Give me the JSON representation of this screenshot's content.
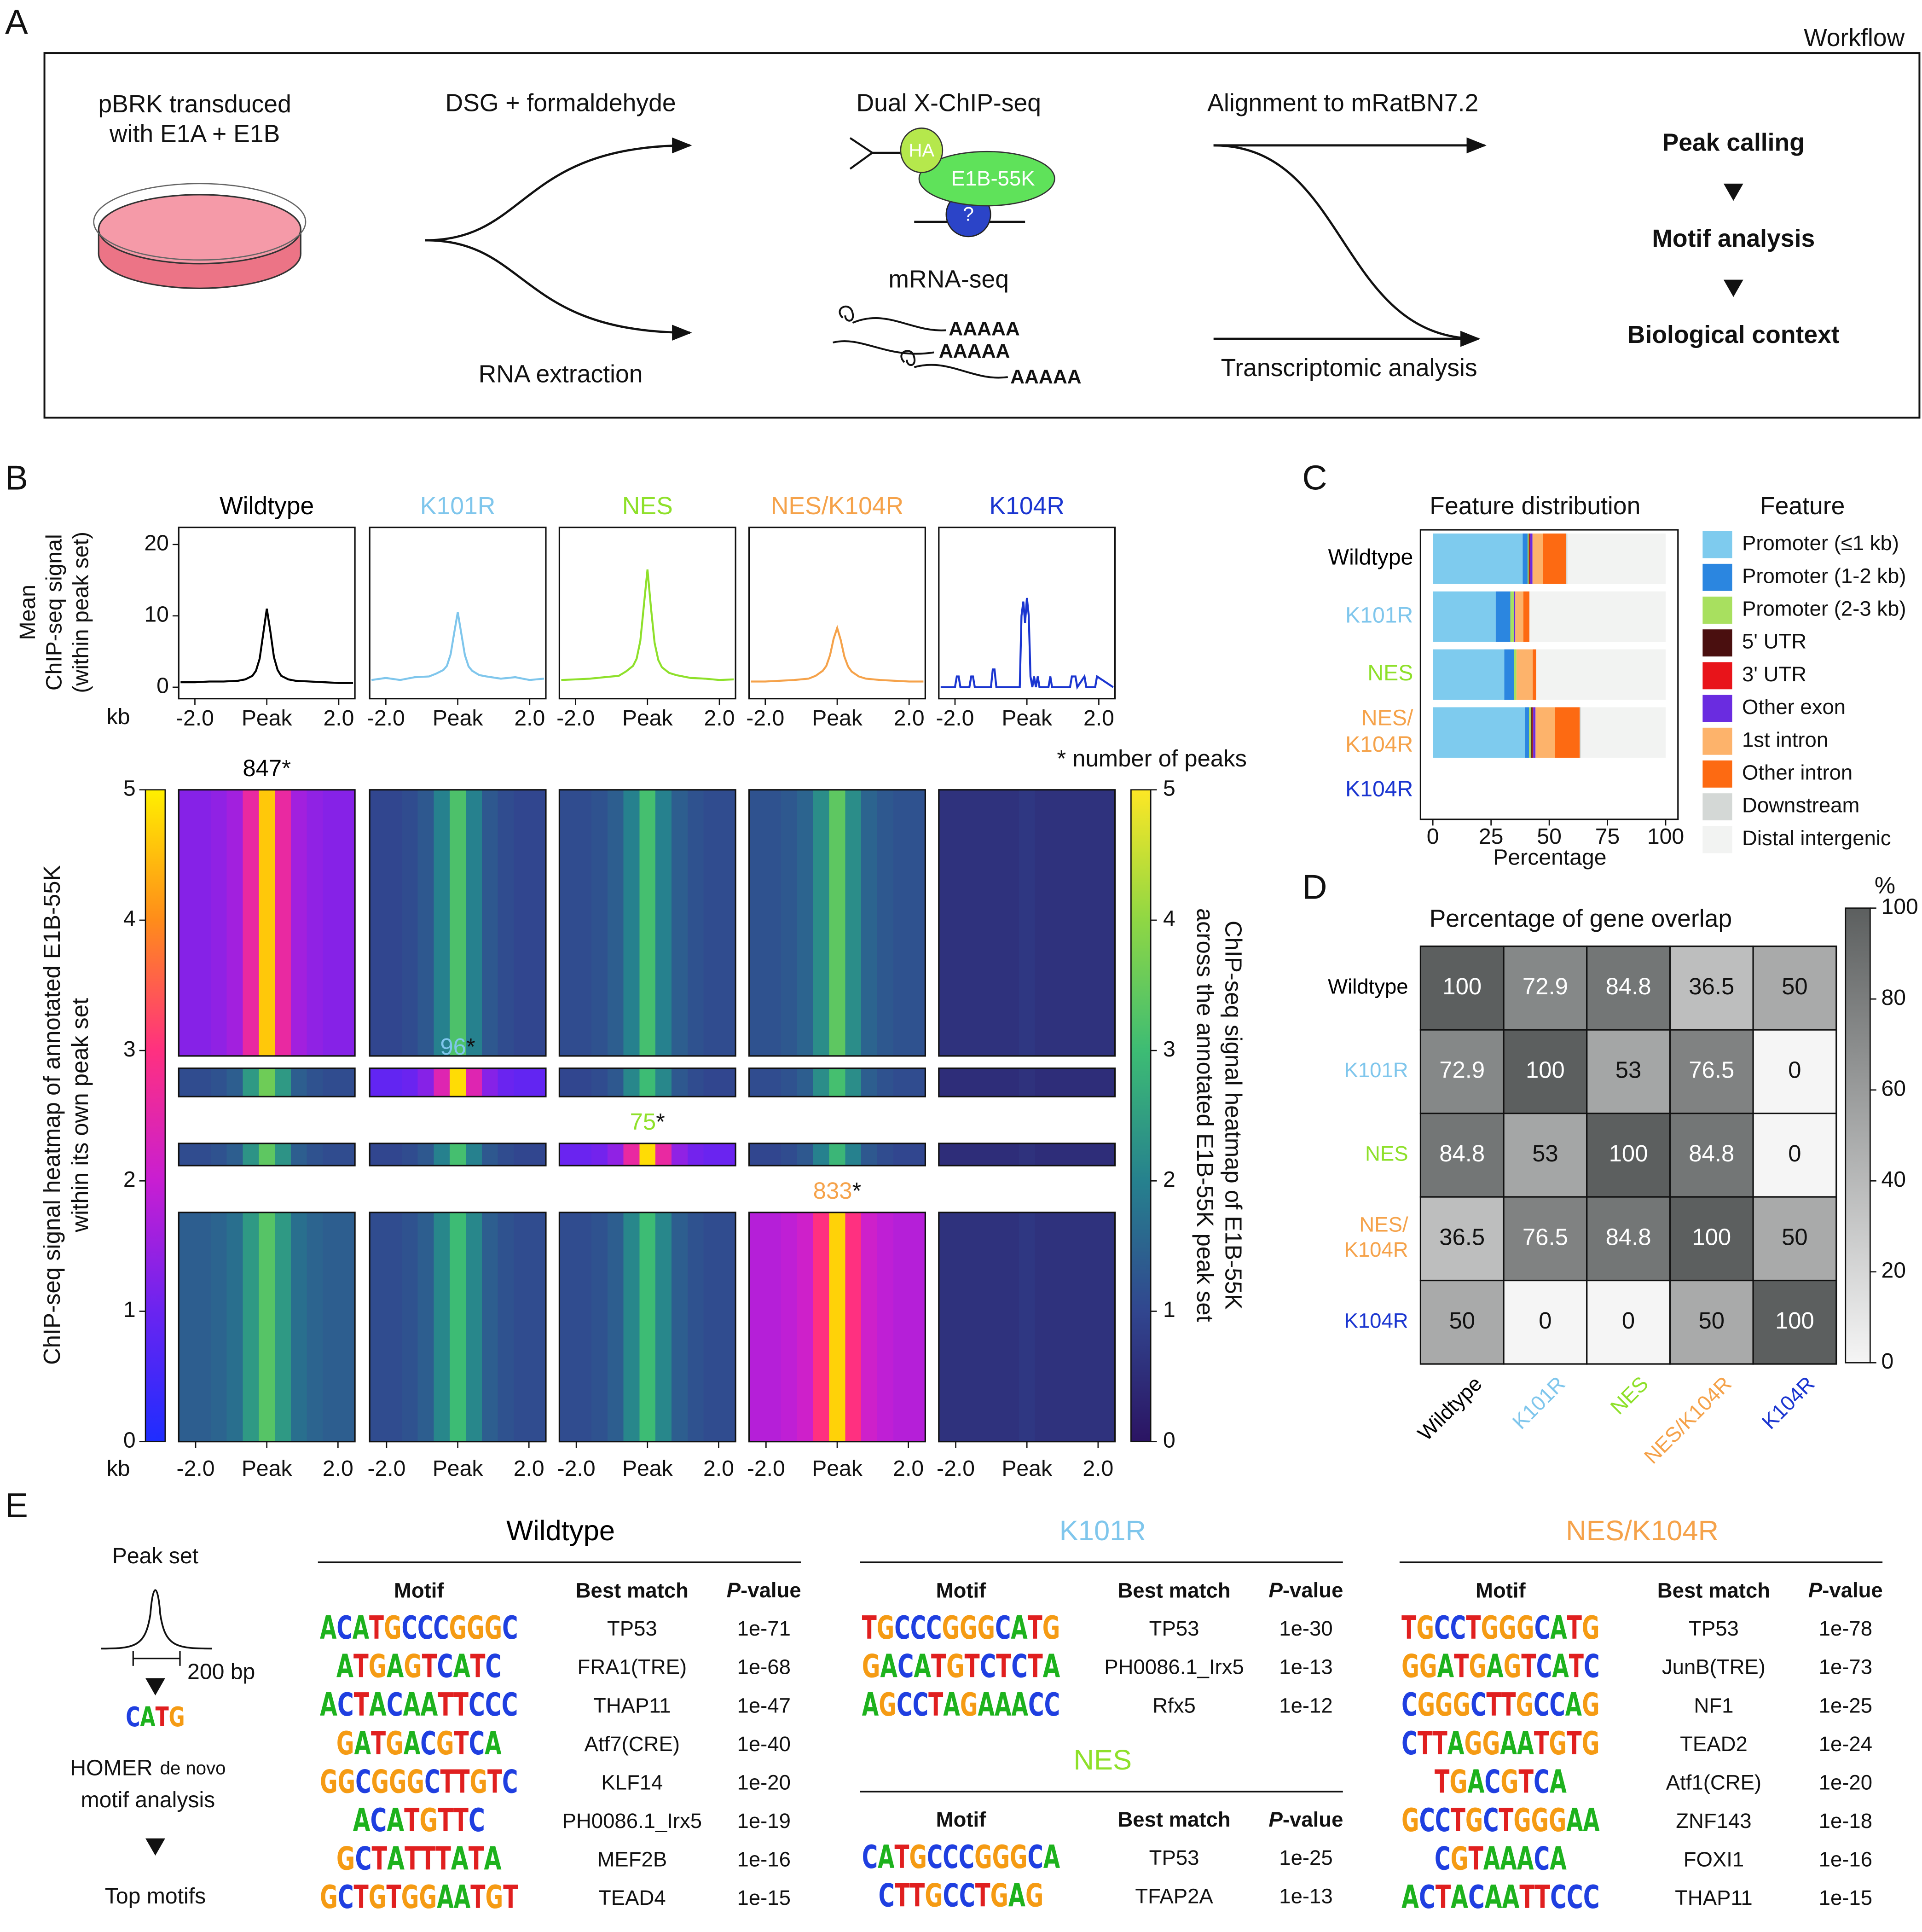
{
  "panel_labels": [
    "A",
    "B",
    "C",
    "D",
    "E"
  ],
  "workflow": {
    "title": "Workflow",
    "culture": "pBRK transduced\nwith E1A + E1B",
    "crosslink": "DSG + formaldehyde",
    "rna": "RNA extraction",
    "chip": "Dual X-ChIP-seq",
    "antibody_tag": "HA",
    "protein": "E1B-55K",
    "unknown": "?",
    "mrna": "mRNA-seq",
    "polya": [
      "AAAAA",
      "AAAAA",
      "AAAAA"
    ],
    "alignment": "Alignment to mRatBN7.2",
    "transcriptomic": "Transcriptomic analysis",
    "steps": [
      "Peak calling",
      "Motif analysis",
      "Biological context"
    ]
  },
  "chart_data": [
    {
      "type": "line",
      "ylabel": "Mean\nChIP-seq signal\n(within peak set)",
      "xlabel": "kb",
      "ylim": [
        -1.6,
        22.4
      ],
      "yticks": [
        0,
        10,
        20
      ],
      "xlim": [
        -2.45,
        2.45
      ],
      "xticks": [
        {
          "value": -2,
          "label": "-2.0"
        },
        {
          "value": 0,
          "label": "Peak"
        },
        {
          "value": 2,
          "label": "2.0"
        }
      ],
      "series": [
        {
          "name": "Wildtype",
          "color": "#000000",
          "x": [
            -2.4,
            -2,
            -1.6,
            -1.2,
            -0.8,
            -0.6,
            -0.4,
            -0.3,
            -0.2,
            -0.1,
            0,
            0.1,
            0.2,
            0.3,
            0.4,
            0.6,
            0.8,
            1.2,
            1.6,
            2,
            2.4
          ],
          "values": [
            0.7,
            0.7,
            0.8,
            0.8,
            0.9,
            1.1,
            1.6,
            2.3,
            4.0,
            7.5,
            11.0,
            7.8,
            4.2,
            2.4,
            1.6,
            1.1,
            0.9,
            0.8,
            0.7,
            0.6,
            0.6
          ]
        },
        {
          "name": "K101R",
          "color": "#7fc6ec",
          "x": [
            -2.4,
            -2,
            -1.6,
            -1.2,
            -0.8,
            -0.6,
            -0.4,
            -0.3,
            -0.2,
            -0.1,
            0,
            0.1,
            0.2,
            0.3,
            0.4,
            0.6,
            0.8,
            1.2,
            1.6,
            2,
            2.4
          ],
          "values": [
            1.0,
            1.3,
            1.0,
            1.4,
            1.5,
            1.9,
            2.4,
            3.0,
            4.6,
            7.6,
            10.5,
            7.5,
            4.5,
            2.9,
            2.3,
            1.7,
            1.5,
            1.2,
            1.4,
            1.0,
            1.2
          ]
        },
        {
          "name": "NES",
          "color": "#8ee02a",
          "x": [
            -2.4,
            -2,
            -1.6,
            -1.2,
            -0.8,
            -0.6,
            -0.4,
            -0.3,
            -0.2,
            -0.1,
            0,
            0.1,
            0.2,
            0.3,
            0.4,
            0.6,
            0.8,
            1.2,
            1.6,
            2,
            2.4
          ],
          "values": [
            1.0,
            1.1,
            1.2,
            1.4,
            1.6,
            2.2,
            3.0,
            4.0,
            6.5,
            11.5,
            16.5,
            11.0,
            6.2,
            3.8,
            2.8,
            2.0,
            1.7,
            1.3,
            1.2,
            1.0,
            1.1
          ]
        },
        {
          "name": "NES/K104R",
          "color": "#f5a24a",
          "x": [
            -2.4,
            -2,
            -1.6,
            -1.2,
            -0.8,
            -0.6,
            -0.4,
            -0.3,
            -0.2,
            -0.1,
            0,
            0.1,
            0.2,
            0.3,
            0.4,
            0.6,
            0.8,
            1.2,
            1.6,
            2,
            2.4
          ],
          "values": [
            0.8,
            0.8,
            0.9,
            1.0,
            1.2,
            1.6,
            2.3,
            3.0,
            4.5,
            6.8,
            8.3,
            6.6,
            4.3,
            2.9,
            2.2,
            1.5,
            1.2,
            1.0,
            0.9,
            0.8,
            0.8
          ]
        },
        {
          "name": "K104R",
          "color": "#1a35d0",
          "x": [
            -2.4,
            -2.0,
            -1.95,
            -1.9,
            -1.85,
            -1.6,
            -1.55,
            -1.5,
            -1.45,
            -1.0,
            -0.95,
            -0.9,
            -0.85,
            -0.2,
            -0.15,
            -0.1,
            -0.05,
            0,
            0.05,
            0.1,
            0.15,
            0.2,
            0.25,
            0.3,
            0.35,
            0.6,
            0.65,
            0.7,
            1.2,
            1.25,
            1.35,
            1.4,
            1.6,
            1.65,
            1.9,
            1.95,
            2.4
          ],
          "values": [
            0,
            0,
            1.5,
            1.5,
            0,
            0,
            1.5,
            1.5,
            0,
            0,
            2.5,
            2.5,
            0,
            0,
            10,
            12,
            9,
            12.5,
            10,
            1.5,
            0,
            1.5,
            0,
            1.5,
            0,
            0,
            1.5,
            0,
            0,
            1.5,
            1.5,
            0,
            1.5,
            0,
            0,
            1.5,
            0
          ]
        }
      ]
    },
    {
      "type": "heatmap",
      "xlabel": "kb",
      "xlim": [
        -2.475,
        2.475
      ],
      "xticks": [
        {
          "value": -2,
          "label": "-2.0"
        },
        {
          "value": 0,
          "label": "Peak"
        },
        {
          "value": 2,
          "label": "2.0"
        }
      ],
      "x": [
        -2.25,
        -1.8,
        -1.35,
        -0.9,
        -0.45,
        0,
        0.45,
        0.9,
        1.35,
        1.8,
        2.25
      ],
      "note": "* number of peaks",
      "count_marker": "*",
      "peak_sets": [
        {
          "count": 847,
          "color": "#000000"
        },
        {
          "count": 96,
          "color": "#7fc6ec"
        },
        {
          "count": 75,
          "color": "#8ee02a"
        },
        {
          "count": 833,
          "color": "#f5a24a"
        }
      ],
      "z": [
        [
          [
            1.3,
            1.3,
            1.4,
            1.6,
            2.6,
            4.6,
            2.6,
            1.6,
            1.4,
            1.3,
            1.3
          ],
          [
            1.0,
            1.0,
            1.1,
            1.3,
            2.0,
            3.2,
            2.0,
            1.3,
            1.1,
            1.0,
            1.0
          ],
          [
            1.1,
            1.1,
            1.2,
            1.4,
            2.0,
            3.1,
            2.0,
            1.4,
            1.2,
            1.1,
            1.1
          ],
          [
            1.2,
            1.2,
            1.3,
            1.5,
            2.2,
            3.4,
            2.2,
            1.5,
            1.3,
            1.2,
            1.2
          ],
          [
            0.6,
            0.6,
            0.6,
            0.6,
            0.6,
            0.7,
            0.6,
            0.6,
            0.6,
            0.6,
            0.6
          ]
        ],
        [
          [
            1.1,
            1.1,
            1.2,
            1.4,
            2.4,
            3.6,
            2.4,
            1.4,
            1.2,
            1.1,
            1.1
          ],
          [
            0.9,
            0.9,
            1.0,
            1.3,
            2.4,
            4.8,
            2.4,
            1.3,
            1.0,
            0.9,
            0.9
          ],
          [
            1.0,
            1.0,
            1.1,
            1.3,
            2.1,
            3.0,
            2.1,
            1.3,
            1.1,
            1.0,
            1.0
          ],
          [
            1.1,
            1.1,
            1.2,
            1.4,
            2.2,
            3.1,
            2.2,
            1.4,
            1.2,
            1.1,
            1.1
          ],
          [
            0.5,
            0.5,
            0.5,
            0.5,
            0.5,
            0.6,
            0.5,
            0.5,
            0.5,
            0.5,
            0.5
          ]
        ],
        [
          [
            1.1,
            1.1,
            1.2,
            1.4,
            2.3,
            3.4,
            2.3,
            1.4,
            1.2,
            1.1,
            1.1
          ],
          [
            1.0,
            1.0,
            1.1,
            1.3,
            2.0,
            3.1,
            2.0,
            1.3,
            1.1,
            1.0,
            1.0
          ],
          [
            1.0,
            1.0,
            1.1,
            1.4,
            2.6,
            4.8,
            2.6,
            1.4,
            1.1,
            1.0,
            1.0
          ],
          [
            1.0,
            1.0,
            1.1,
            1.3,
            2.0,
            2.9,
            2.0,
            1.3,
            1.1,
            1.0,
            1.0
          ],
          [
            0.5,
            0.5,
            0.5,
            0.5,
            0.5,
            0.6,
            0.5,
            0.5,
            0.5,
            0.5,
            0.5
          ]
        ],
        [
          [
            1.4,
            1.4,
            1.5,
            1.7,
            2.4,
            3.3,
            2.4,
            1.7,
            1.5,
            1.4,
            1.4
          ],
          [
            1.1,
            1.1,
            1.2,
            1.4,
            2.1,
            3.0,
            2.1,
            1.4,
            1.2,
            1.1,
            1.1
          ],
          [
            1.1,
            1.1,
            1.2,
            1.4,
            2.1,
            3.0,
            2.1,
            1.4,
            1.2,
            1.1,
            1.1
          ],
          [
            1.8,
            1.8,
            1.9,
            2.1,
            3.0,
            4.7,
            3.0,
            2.1,
            1.9,
            1.8,
            1.8
          ],
          [
            0.6,
            0.6,
            0.6,
            0.6,
            0.6,
            0.7,
            0.6,
            0.6,
            0.6,
            0.6,
            0.6
          ]
        ]
      ],
      "colorbars": [
        {
          "label": "ChIP-seq signal heatmap of annotated E1B-55K\nwithin its own peak set",
          "ylim": [
            0,
            5
          ],
          "yticks": [
            0,
            1,
            2,
            3,
            4,
            5
          ],
          "stops": [
            [
              0,
              "#1e2dff"
            ],
            [
              1,
              "#6a24f0"
            ],
            [
              2,
              "#c81ed2"
            ],
            [
              3,
              "#ff3080"
            ],
            [
              4,
              "#ff8c1a"
            ],
            [
              5,
              "#fff000"
            ]
          ]
        },
        {
          "label": "ChIP-seq signal heatmap of E1B-55K\nacross the annotated E1B-55K peak set",
          "ylim": [
            0,
            5
          ],
          "yticks": [
            0,
            1,
            2,
            3,
            4,
            5
          ],
          "stops": [
            [
              0,
              "#2b1463"
            ],
            [
              1,
              "#31468f"
            ],
            [
              2,
              "#26818e"
            ],
            [
              3,
              "#3dbc74"
            ],
            [
              4,
              "#8fd744"
            ],
            [
              5,
              "#fde725"
            ]
          ]
        }
      ]
    },
    {
      "type": "bar",
      "orientation": "horizontal",
      "stacked": true,
      "title": "Feature distribution",
      "xlabel": "Percentage",
      "legend_title": "Feature",
      "background": "#ffffff",
      "xlim": [
        -5.3,
        105.3
      ],
      "xticks": [
        0,
        25,
        50,
        75,
        100
      ],
      "categories": [
        "Wildtype",
        "K101R",
        "NES",
        "NES/\nK104R",
        "K104R"
      ],
      "category_colors": [
        "#000000",
        "#7fc6ec",
        "#8ee02a",
        "#f5a24a",
        "#1a35d0"
      ],
      "series": [
        {
          "name": "Promoter (≤1 kb)",
          "color": "#7ecbee",
          "values": [
            38.6,
            27,
            30.7,
            39.7,
            0
          ]
        },
        {
          "name": "Promoter (1-2 kb)",
          "color": "#2b86e0",
          "values": [
            2.1,
            6.3,
            4.2,
            1.6,
            0
          ]
        },
        {
          "name": "Promoter (2-3 kb)",
          "color": "#a8e05f",
          "values": [
            0.5,
            1.6,
            1.0,
            1.0,
            0
          ]
        },
        {
          "name": "5' UTR",
          "color": "#4a0f0f",
          "values": [
            0.3,
            0,
            0,
            0.5,
            0
          ]
        },
        {
          "name": "3' UTR",
          "color": "#e8141a",
          "values": [
            0.3,
            0,
            0,
            0.3,
            0
          ]
        },
        {
          "name": "Other exon",
          "color": "#6a2ce0",
          "values": [
            1.0,
            0.5,
            0,
            1.0,
            0
          ]
        },
        {
          "name": "1st intron",
          "color": "#fdb36b",
          "values": [
            4.5,
            3.5,
            7.0,
            8.4,
            0
          ]
        },
        {
          "name": "Other intron",
          "color": "#fd6a12",
          "values": [
            10,
            2.6,
            1.5,
            10.6,
            0
          ]
        },
        {
          "name": "Downstream",
          "color": "#d4d8d6",
          "values": [
            0.5,
            0,
            0,
            0.5,
            0
          ]
        },
        {
          "name": "Distal intergenic",
          "color": "#f2f3f2",
          "values": [
            42.2,
            58.5,
            55.6,
            36.4,
            0
          ]
        }
      ]
    },
    {
      "type": "matrix",
      "title": "Percentage of gene overlap",
      "labels": [
        "Wildtype",
        "K101R",
        "NES",
        "NES/\nK104R",
        "K104R"
      ],
      "column_labels": [
        "Wildtype",
        "K101R",
        "NES",
        "NES/K104R",
        "K104R"
      ],
      "label_colors": [
        "#000000",
        "#7fc6ec",
        "#8ee02a",
        "#f5a24a",
        "#1a35d0"
      ],
      "values": [
        [
          100,
          72.9,
          84.8,
          36.5,
          50
        ],
        [
          72.9,
          100,
          53,
          76.5,
          0
        ],
        [
          84.8,
          53,
          100,
          84.8,
          0
        ],
        [
          36.5,
          76.5,
          84.8,
          100,
          50
        ],
        [
          50,
          0,
          0,
          50,
          100
        ]
      ],
      "zlabel": "%",
      "zlim": [
        0,
        100
      ],
      "zticks": [
        0,
        20,
        40,
        60,
        80,
        100
      ],
      "stops": [
        [
          0,
          "#f5f5f5"
        ],
        [
          100,
          "#5c5f5f"
        ]
      ]
    }
  ],
  "motifs": {
    "peak_set": "Peak set",
    "window": "200 bp",
    "example_motif": "CATG",
    "homer": [
      "HOMER",
      "de novo",
      "motif analysis"
    ],
    "result": "Top motifs",
    "columns": [
      "Motif",
      "Best match",
      "P-value"
    ],
    "tables": [
      {
        "title": "Wildtype",
        "color": "#000000",
        "rows": [
          [
            "ACATGCCCGGGC",
            "TP53",
            "1e-71"
          ],
          [
            "ATGAGTCATC",
            "FRA1(TRE)",
            "1e-68"
          ],
          [
            "ACTACAATTCCC",
            "THAP11",
            "1e-47"
          ],
          [
            "GATGACGTCA",
            "Atf7(CRE)",
            "1e-40"
          ],
          [
            "GGCGGGCTTGTC",
            "KLF14",
            "1e-20"
          ],
          [
            "ACATGTTC",
            "PH0086.1_Irx5",
            "1e-19"
          ],
          [
            "GCTATTTATA",
            "MEF2B",
            "1e-16"
          ],
          [
            "GCTGTGGAATGT",
            "TEAD4",
            "1e-15"
          ]
        ]
      },
      {
        "title": "K101R",
        "color": "#7fc6ec",
        "rows": [
          [
            "TGCCCGGGCATG",
            "TP53",
            "1e-30"
          ],
          [
            "GACATGTCTCTA",
            "PH0086.1_Irx5",
            "1e-13"
          ],
          [
            "AGCCTAGAAACC",
            "Rfx5",
            "1e-12"
          ]
        ]
      },
      {
        "title": "NES",
        "color": "#8ee02a",
        "rows": [
          [
            "CATGCCCGGGCA",
            "TP53",
            "1e-25"
          ],
          [
            "CTTGCCTGAG",
            "TFAP2A",
            "1e-13"
          ]
        ]
      },
      {
        "title": "NES/K104R",
        "color": "#f5a24a",
        "rows": [
          [
            "TGCCTGGGCATG",
            "TP53",
            "1e-78"
          ],
          [
            "GGATGAGTCATC",
            "JunB(TRE)",
            "1e-73"
          ],
          [
            "CGGGCTTGCCAG",
            "NF1",
            "1e-25"
          ],
          [
            "CTTAGGAATGTG",
            "TEAD2",
            "1e-24"
          ],
          [
            "TGACGTCA",
            "Atf1(CRE)",
            "1e-20"
          ],
          [
            "GCCTGCTGGGAA",
            "ZNF143",
            "1e-18"
          ],
          [
            "CGTAAACA",
            "FOXI1",
            "1e-16"
          ],
          [
            "ACTACAATTCCC",
            "THAP11",
            "1e-15"
          ]
        ]
      }
    ]
  }
}
